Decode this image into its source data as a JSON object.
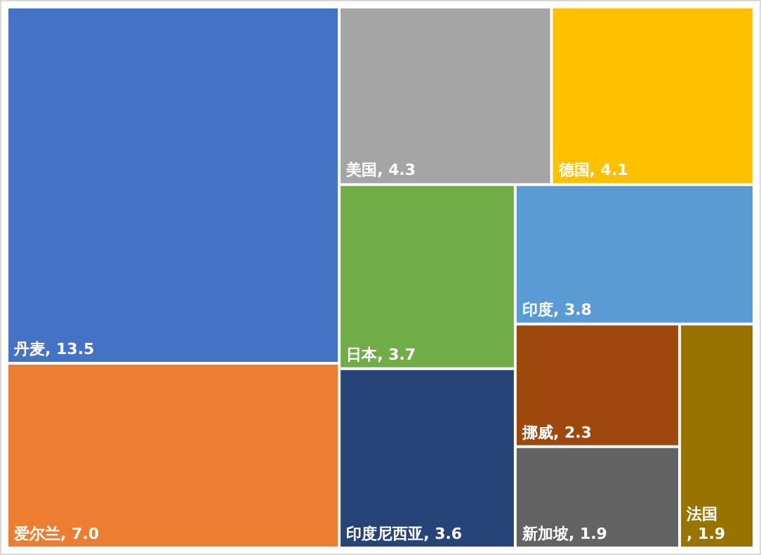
{
  "chart_data": {
    "type": "other",
    "categories": [
      "丹麦",
      "爱尔兰",
      "美国",
      "德国",
      "日本",
      "印度尼西亚",
      "印度",
      "挪威",
      "新加坡",
      "法国"
    ],
    "values": [
      13.5,
      7.0,
      4.3,
      4.1,
      3.7,
      3.6,
      3.8,
      2.3,
      1.9,
      1.9
    ],
    "value_labels": [
      ", 13.5",
      ", 7.0",
      ", 4.3",
      ", 4.1",
      ", 3.7",
      ", 3.6",
      ", 3.8",
      ", 2.3",
      ", 1.9",
      ", 1.9"
    ],
    "colors": [
      "#4472c4",
      "#ed7d31",
      "#a5a5a5",
      "#ffc000",
      "#70ad47",
      "#264478",
      "#5b9bd5",
      "#9e480e",
      "#636363",
      "#997300"
    ]
  }
}
